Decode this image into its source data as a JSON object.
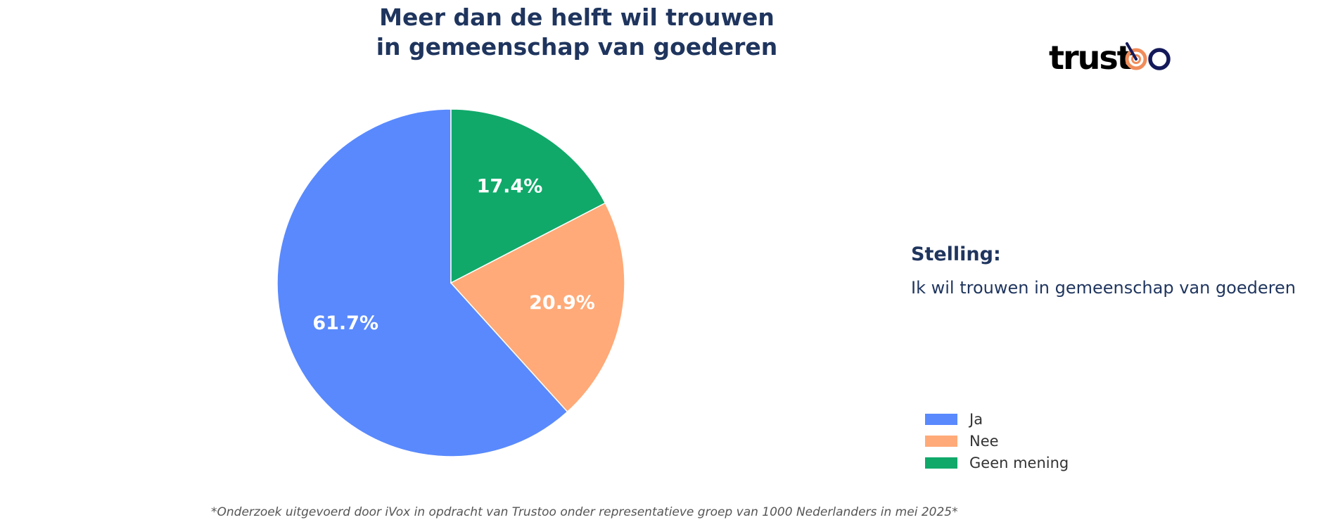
{
  "chart_data": {
    "type": "pie",
    "title": [
      "Meer dan de helft wil trouwen",
      "in gemeenschap van goederen"
    ],
    "categories": [
      "Ja",
      "Nee",
      "Geen mening"
    ],
    "values": [
      61.7,
      20.9,
      17.4
    ],
    "labels": [
      "61.7%",
      "20.9%",
      "17.4%"
    ],
    "colors": [
      "#5989fd",
      "#ffaa78",
      "#10a96a"
    ],
    "start_angle": "top (12 o'clock), counter-clockwise",
    "legend_position": "bottom-right"
  },
  "logo": {
    "text": "trustoo",
    "icon": "target-icon",
    "colors": {
      "text": "#14195a",
      "accent": "#f08c5a"
    }
  },
  "statement": {
    "heading": "Stelling:",
    "text": "Ik wil trouwen in gemeenschap van goederen"
  },
  "footnote": "*Onderzoek uitgevoerd door iVox in opdracht van Trustoo onder representatieve groep van 1000 Nederlanders in mei 2025*"
}
